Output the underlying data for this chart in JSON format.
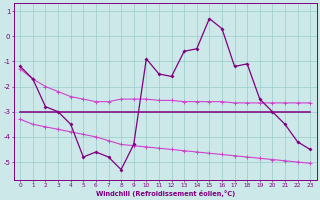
{
  "x": [
    0,
    1,
    2,
    3,
    4,
    5,
    6,
    7,
    8,
    9,
    10,
    11,
    12,
    13,
    14,
    15,
    16,
    17,
    18,
    19,
    20,
    21,
    22,
    23
  ],
  "line_main": [
    -1.2,
    -1.7,
    -2.8,
    -3.0,
    -3.5,
    -4.8,
    -4.6,
    -4.8,
    -5.3,
    -4.3,
    -0.9,
    -1.5,
    -1.6,
    -0.6,
    -0.5,
    0.7,
    0.3,
    -1.2,
    -1.1,
    -2.5,
    -3.0,
    -3.5,
    -4.2,
    -4.5
  ],
  "line_upper": [
    -1.3,
    -1.7,
    -2.0,
    -2.2,
    -2.4,
    -2.5,
    -2.6,
    -2.6,
    -2.5,
    -2.5,
    -2.5,
    -2.55,
    -2.55,
    -2.6,
    -2.6,
    -2.6,
    -2.6,
    -2.65,
    -2.65,
    -2.65,
    -2.65,
    -2.65,
    -2.65,
    -2.65
  ],
  "line_mid": [
    -3.0,
    -3.0,
    -3.0,
    -3.0,
    -3.0,
    -3.0,
    -3.0,
    -3.0,
    -3.0,
    -3.0,
    -3.0,
    -3.0,
    -3.0,
    -3.0,
    -3.0,
    -3.0,
    -3.0,
    -3.0,
    -3.0,
    -3.0,
    -3.0,
    -3.0,
    -3.0,
    -3.0
  ],
  "line_lower": [
    -3.3,
    -3.5,
    -3.6,
    -3.7,
    -3.8,
    -3.9,
    -4.0,
    -4.15,
    -4.3,
    -4.35,
    -4.4,
    -4.45,
    -4.5,
    -4.55,
    -4.6,
    -4.65,
    -4.7,
    -4.75,
    -4.8,
    -4.85,
    -4.9,
    -4.95,
    -5.0,
    -5.05
  ],
  "main_color": "#800080",
  "band_color": "#cc44cc",
  "background": "#cce8e8",
  "grid_color": "#99cccc",
  "xlabel": "Windchill (Refroidissement éolien,°C)",
  "ylim": [
    -5.7,
    1.3
  ],
  "xlim": [
    -0.5,
    23.5
  ],
  "yticks": [
    1,
    0,
    -1,
    -2,
    -3,
    -4,
    -5
  ],
  "xticks": [
    0,
    1,
    2,
    3,
    4,
    5,
    6,
    7,
    8,
    9,
    10,
    11,
    12,
    13,
    14,
    15,
    16,
    17,
    18,
    19,
    20,
    21,
    22,
    23
  ]
}
